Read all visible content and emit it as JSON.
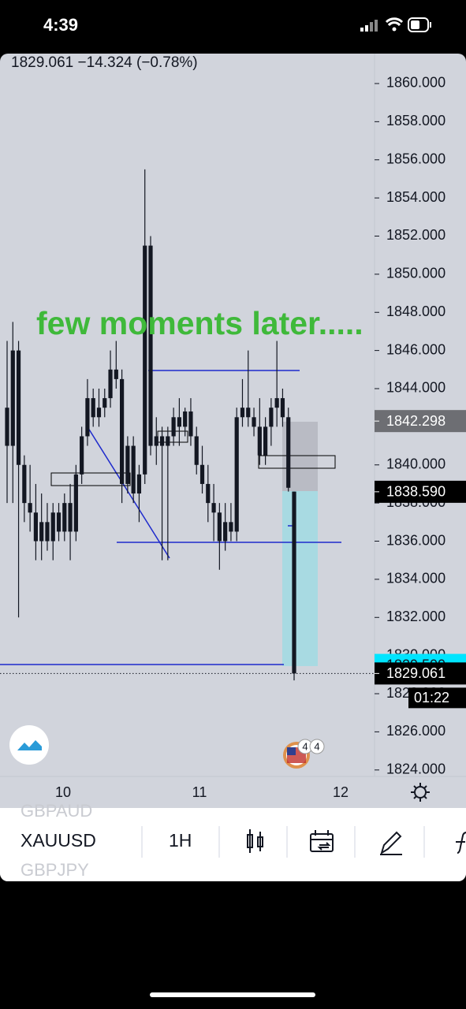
{
  "status": {
    "time": "4:39"
  },
  "header": {
    "quote": "1829.061  −14.324 (−0.78%)"
  },
  "chart_data": {
    "type": "candlestick",
    "annotation": "few moments later.....",
    "ylim": [
      1823.66,
      1861.57
    ],
    "yticks": [
      {
        "value": 1860,
        "label": "1860.000"
      },
      {
        "value": 1858,
        "label": "1858.000"
      },
      {
        "value": 1856,
        "label": "1856.000"
      },
      {
        "value": 1854,
        "label": "1854.000"
      },
      {
        "value": 1852,
        "label": "1852.000"
      },
      {
        "value": 1850,
        "label": "1850.000"
      },
      {
        "value": 1848,
        "label": "1848.000"
      },
      {
        "value": 1846,
        "label": "1846.000"
      },
      {
        "value": 1844,
        "label": "1844.000"
      },
      {
        "value": 1842,
        "label": "1842.000"
      },
      {
        "value": 1840,
        "label": "1840.000"
      },
      {
        "value": 1838,
        "label": "1838.000"
      },
      {
        "value": 1836,
        "label": "1836.000"
      },
      {
        "value": 1834,
        "label": "1834.000"
      },
      {
        "value": 1832,
        "label": "1832.000"
      },
      {
        "value": 1830,
        "label": "1830.000"
      },
      {
        "value": 1828,
        "label": "1828.000"
      },
      {
        "value": 1826,
        "label": "1826.000"
      },
      {
        "value": 1824,
        "label": "1824.000"
      }
    ],
    "time_labels": [
      "10",
      "11",
      "12"
    ],
    "color": "#131722",
    "candles": [
      [
        1843,
        1846.5,
        1838,
        1841
      ],
      [
        1841,
        1847.5,
        1838,
        1846
      ],
      [
        1846,
        1846.5,
        1832,
        1840
      ],
      [
        1840,
        1840.5,
        1837,
        1838
      ],
      [
        1838,
        1840,
        1836.5,
        1837.5
      ],
      [
        1837.5,
        1839,
        1835,
        1836
      ],
      [
        1836,
        1838.5,
        1835,
        1837
      ],
      [
        1837,
        1838,
        1835.5,
        1836
      ],
      [
        1836,
        1838,
        1835,
        1837.5
      ],
      [
        1837.5,
        1838,
        1836,
        1836.5
      ],
      [
        1836.5,
        1838.5,
        1836,
        1838
      ],
      [
        1838,
        1839,
        1835,
        1836.5
      ],
      [
        1836.5,
        1840,
        1836,
        1839.5
      ],
      [
        1839.5,
        1842,
        1839,
        1841.5
      ],
      [
        1841.5,
        1844.5,
        1841,
        1843.5
      ],
      [
        1843.5,
        1844,
        1842,
        1842.5
      ],
      [
        1842.5,
        1844,
        1842,
        1843
      ],
      [
        1843,
        1844,
        1842.5,
        1843.5
      ],
      [
        1843.5,
        1846,
        1843,
        1845
      ],
      [
        1845,
        1846.5,
        1844,
        1844.5
      ],
      [
        1844.5,
        1845,
        1838,
        1839
      ],
      [
        1839,
        1841.5,
        1838.5,
        1841
      ],
      [
        1841,
        1841.5,
        1838,
        1838.5
      ],
      [
        1838.5,
        1840,
        1837,
        1839.5
      ],
      [
        1839.5,
        1855.5,
        1839,
        1851.5
      ],
      [
        1851.5,
        1852,
        1840.5,
        1841
      ],
      [
        1841,
        1842.5,
        1840,
        1841.5
      ],
      [
        1841.5,
        1842,
        1835,
        1841
      ],
      [
        1841,
        1842,
        1835,
        1841.5
      ],
      [
        1841.5,
        1843,
        1841,
        1842.5
      ],
      [
        1842.5,
        1843.5,
        1841,
        1842
      ],
      [
        1842,
        1843,
        1841.5,
        1842.8
      ],
      [
        1842.8,
        1843.5,
        1841,
        1841.5
      ],
      [
        1841.5,
        1842,
        1839.5,
        1840
      ],
      [
        1840,
        1841,
        1838.5,
        1839
      ],
      [
        1839,
        1840,
        1837,
        1838
      ],
      [
        1838,
        1839,
        1836,
        1837.5
      ],
      [
        1837.5,
        1838,
        1834.5,
        1836
      ],
      [
        1836,
        1838,
        1835.5,
        1837
      ],
      [
        1837,
        1838,
        1836,
        1836.5
      ],
      [
        1836.5,
        1843,
        1836,
        1842.5
      ],
      [
        1842.5,
        1844.5,
        1842,
        1843
      ],
      [
        1843,
        1846,
        1842,
        1842.5
      ],
      [
        1842.5,
        1843,
        1841.5,
        1842
      ],
      [
        1842,
        1843.5,
        1840,
        1840.5
      ],
      [
        1840.5,
        1842.5,
        1840,
        1842
      ],
      [
        1842,
        1843.5,
        1841,
        1843
      ],
      [
        1843,
        1846.5,
        1842,
        1843.5
      ],
      [
        1843.5,
        1844,
        1842,
        1842.5
      ],
      [
        1842.5,
        1843,
        1838.6,
        1838.8
      ],
      [
        1838.6,
        1838.6,
        1828.7,
        1829.061
      ]
    ],
    "price_tags": [
      {
        "value": 1842.298,
        "color": "#6d6e73"
      },
      {
        "value": 1838.59,
        "label": "1838.590",
        "color": "#000000"
      },
      {
        "value": 1829.509,
        "color": "#00e5ff"
      },
      {
        "value": 1829.061,
        "color": "#000000"
      }
    ],
    "countdown": "01:22",
    "badge": [
      "4",
      "4"
    ]
  },
  "toolbar": {
    "symbol_prev": "GBPAUD",
    "symbol": "XAUUSD",
    "symbol_next": "GBPJPY",
    "interval": "1H"
  }
}
